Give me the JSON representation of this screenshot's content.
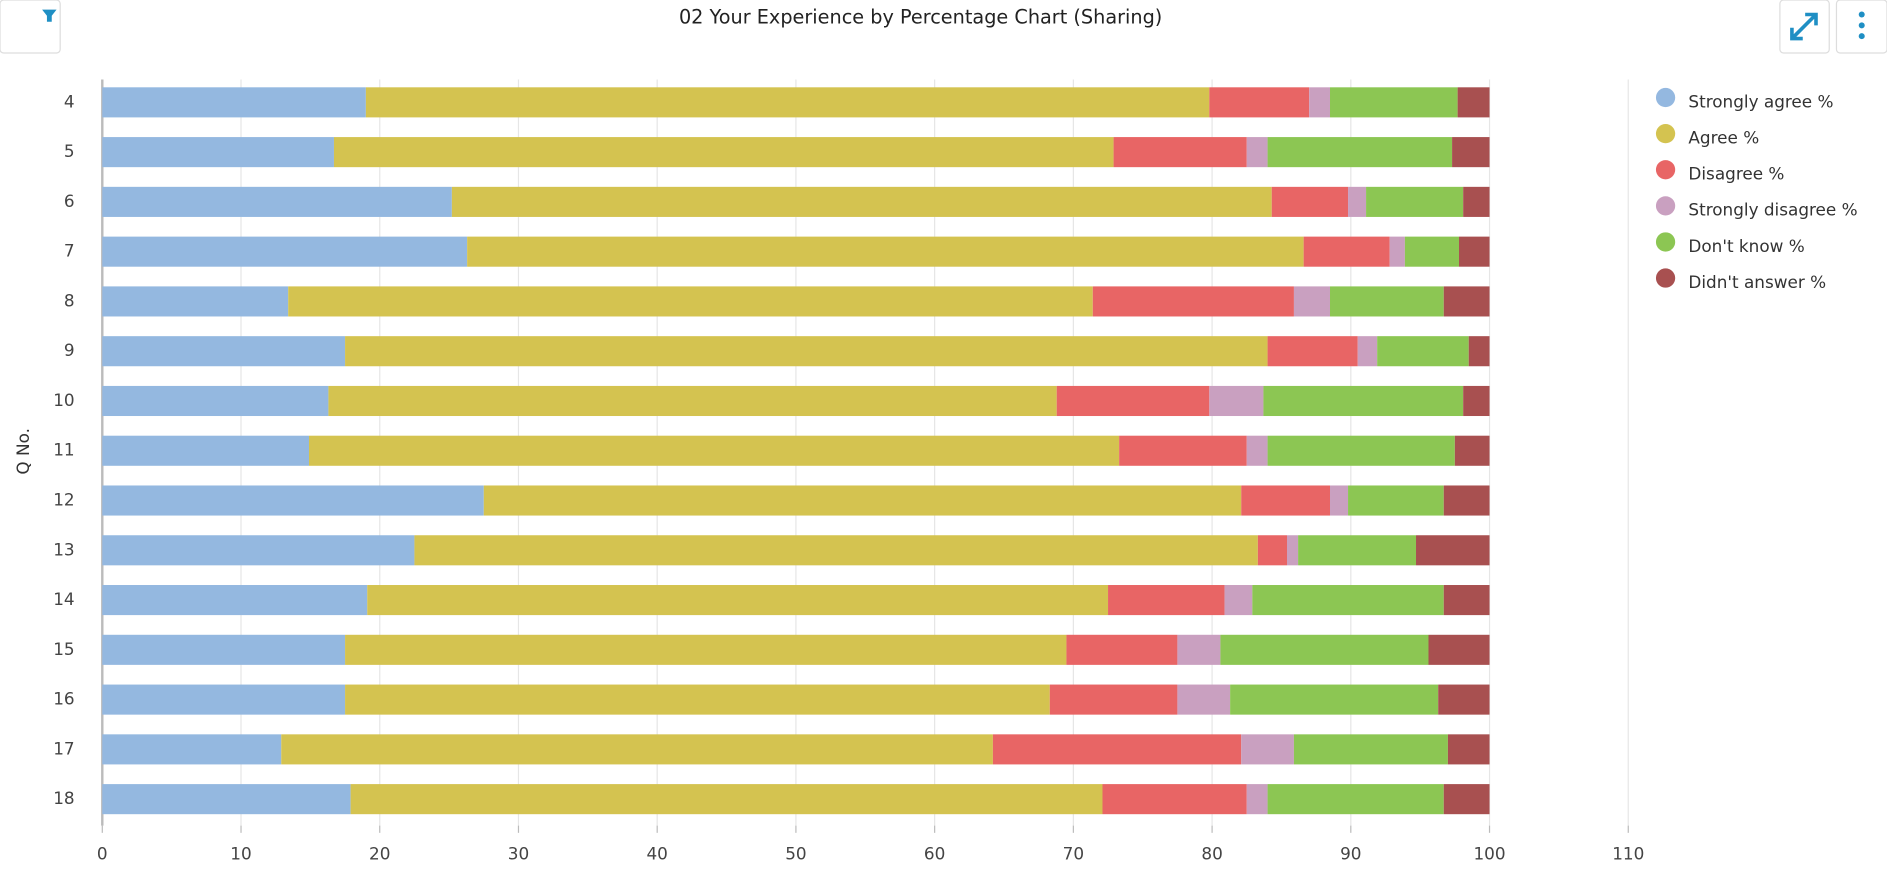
{
  "chart_data": {
    "type": "stacked_bar_horizontal",
    "title": "02 Your Experience by Percentage Chart (Sharing)",
    "y_label": "Q No.",
    "categories": [
      "4",
      "5",
      "6",
      "7",
      "8",
      "9",
      "10",
      "11",
      "12",
      "13",
      "14",
      "15",
      "16",
      "17",
      "18"
    ],
    "series": [
      {
        "name": "Strongly agree %",
        "color": "#94b8e0",
        "values": [
          19.0,
          16.7,
          25.2,
          26.3,
          13.4,
          17.5,
          16.3,
          14.9,
          27.5,
          22.5,
          19.1,
          17.5,
          17.5,
          12.9,
          17.9
        ]
      },
      {
        "name": "Agree %",
        "color": "#d4c350",
        "values": [
          60.8,
          56.2,
          59.1,
          60.3,
          58.0,
          66.5,
          52.5,
          58.4,
          54.6,
          60.8,
          53.4,
          52.0,
          50.8,
          51.3,
          54.2
        ]
      },
      {
        "name": "Disagree %",
        "color": "#e86565",
        "values": [
          7.2,
          9.6,
          5.5,
          6.2,
          14.5,
          6.5,
          11.0,
          9.2,
          6.4,
          2.1,
          8.4,
          8.0,
          9.2,
          17.9,
          10.4
        ]
      },
      {
        "name": "Strongly disagree %",
        "color": "#c9a0c0",
        "values": [
          1.5,
          1.5,
          1.3,
          1.1,
          2.6,
          1.4,
          3.9,
          1.5,
          1.3,
          0.8,
          2.0,
          3.1,
          3.8,
          3.8,
          1.5
        ]
      },
      {
        "name": "Don't know %",
        "color": "#8cc653",
        "values": [
          9.2,
          13.3,
          7.0,
          3.9,
          8.2,
          6.6,
          14.4,
          13.5,
          6.9,
          8.5,
          13.8,
          15.0,
          15.0,
          11.1,
          12.7
        ]
      },
      {
        "name": "Didn't answer %",
        "color": "#a85050",
        "values": [
          2.3,
          2.7,
          1.9,
          2.2,
          3.3,
          1.5,
          1.9,
          2.5,
          3.3,
          5.3,
          3.3,
          4.4,
          3.7,
          3.0,
          3.3
        ]
      }
    ],
    "xlim": [
      0,
      110
    ],
    "xticks": [
      0,
      10,
      20,
      30,
      40,
      50,
      60,
      70,
      80,
      90,
      100,
      110
    ],
    "grid": true,
    "legend": "right"
  }
}
